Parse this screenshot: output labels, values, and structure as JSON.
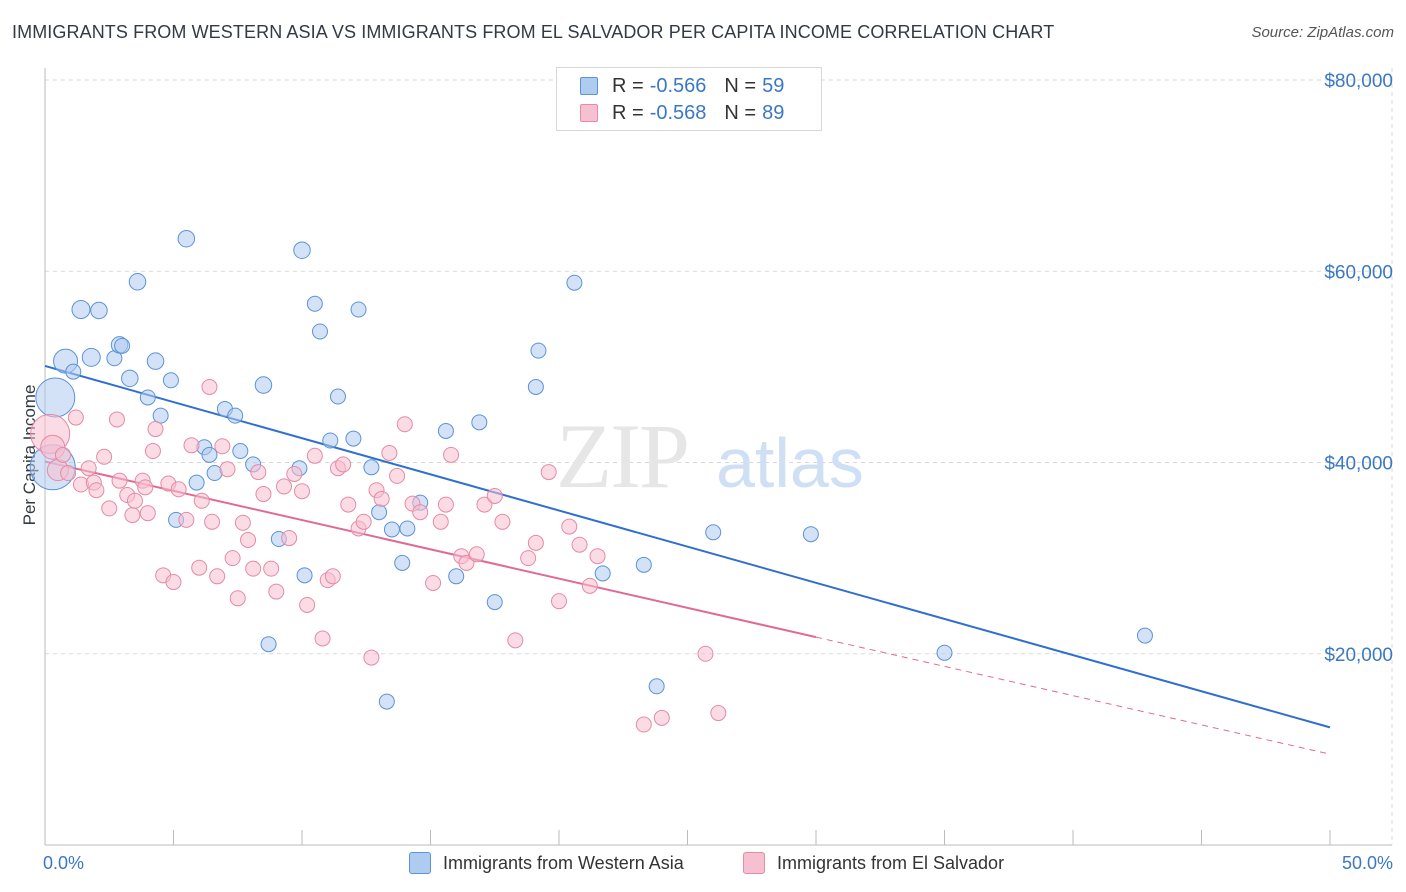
{
  "title": "IMMIGRANTS FROM WESTERN ASIA VS IMMIGRANTS FROM EL SALVADOR PER CAPITA INCOME CORRELATION CHART",
  "source": "Source: ZipAtlas.com",
  "watermark": {
    "zip": "ZIP",
    "atlas": "atlas"
  },
  "colors": {
    "blue_fill": "#aecbf0",
    "blue_stroke": "#5b93d6",
    "blue_line": "#2f6fd0",
    "pink_fill": "#f7c0d0",
    "pink_stroke": "#e58aa8",
    "pink_line": "#e06a95",
    "axis_text": "#3b78c4",
    "grid": "#d9d9d9"
  },
  "legend_top": [
    {
      "r_label": "R =",
      "r_value": "-0.566",
      "n_label": "N =",
      "n_value": "59",
      "color": "blue"
    },
    {
      "r_label": "R =",
      "r_value": "-0.568",
      "n_label": "N =",
      "n_value": "89",
      "color": "pink"
    }
  ],
  "legend_bottom": [
    "Immigrants from Western Asia",
    "Immigrants from El Salvador"
  ],
  "chart_data": {
    "type": "scatter",
    "title": "IMMIGRANTS FROM WESTERN ASIA VS IMMIGRANTS FROM EL SALVADOR PER CAPITA INCOME CORRELATION CHART",
    "xlabel": "",
    "ylabel": "Per Capita Income",
    "xlim": [
      0,
      50
    ],
    "ylim": [
      0,
      80000
    ],
    "x_tick_labels": [
      "0.0%",
      "50.0%"
    ],
    "y_ticks": [
      20000,
      40000,
      60000,
      80000
    ],
    "y_tick_labels": [
      "$20,000",
      "$40,000",
      "$60,000",
      "$80,000"
    ],
    "grid": true,
    "legend_position": "top-center",
    "series": [
      {
        "name": "Immigrants from Western Asia",
        "color": "blue",
        "r": -0.566,
        "n": 59,
        "trend": {
          "x": [
            0,
            50
          ],
          "y": [
            50100,
            12300
          ],
          "dashed_from": null
        },
        "points": [
          [
            0.3,
            39500,
            3
          ],
          [
            0.4,
            46800,
            2.6
          ],
          [
            0.8,
            50600,
            1.6
          ],
          [
            1.1,
            49500,
            1
          ],
          [
            1.4,
            56000,
            1.2
          ],
          [
            1.8,
            51000,
            1.2
          ],
          [
            2.1,
            55900,
            1.1
          ],
          [
            2.7,
            50900,
            1
          ],
          [
            2.9,
            52300,
            1.1
          ],
          [
            3.0,
            52200,
            1
          ],
          [
            3.3,
            48800,
            1.1
          ],
          [
            3.6,
            58900,
            1.1
          ],
          [
            4.0,
            46800,
            1
          ],
          [
            4.3,
            50600,
            1.1
          ],
          [
            4.5,
            44900,
            1
          ],
          [
            4.9,
            48600,
            1
          ],
          [
            5.1,
            34000,
            1
          ],
          [
            5.5,
            63400,
            1.1
          ],
          [
            5.9,
            37900,
            1
          ],
          [
            6.2,
            41600,
            1
          ],
          [
            6.4,
            40800,
            1
          ],
          [
            6.6,
            38900,
            1
          ],
          [
            7.0,
            45600,
            1
          ],
          [
            7.4,
            44900,
            1
          ],
          [
            7.6,
            41200,
            1
          ],
          [
            8.1,
            39800,
            1
          ],
          [
            8.5,
            48100,
            1.1
          ],
          [
            8.7,
            21000,
            1
          ],
          [
            9.1,
            32000,
            1
          ],
          [
            9.9,
            39400,
            1
          ],
          [
            10.0,
            62200,
            1.1
          ],
          [
            10.1,
            28200,
            1
          ],
          [
            10.5,
            56600,
            1
          ],
          [
            10.7,
            53700,
            1
          ],
          [
            11.4,
            46900,
            1
          ],
          [
            11.1,
            42300,
            1
          ],
          [
            12.0,
            42500,
            1
          ],
          [
            12.2,
            56000,
            1
          ],
          [
            12.7,
            39500,
            1
          ],
          [
            13.0,
            34800,
            1
          ],
          [
            13.5,
            33000,
            1
          ],
          [
            14.1,
            33100,
            1
          ],
          [
            14.6,
            35800,
            1
          ],
          [
            13.9,
            29500,
            1
          ],
          [
            13.3,
            15000,
            1
          ],
          [
            15.6,
            43300,
            1
          ],
          [
            16.0,
            28100,
            1
          ],
          [
            16.9,
            44200,
            1
          ],
          [
            17.5,
            25400,
            1
          ],
          [
            19.2,
            51700,
            1
          ],
          [
            19.1,
            47900,
            1
          ],
          [
            20.6,
            58800,
            1
          ],
          [
            21.7,
            28400,
            1
          ],
          [
            23.3,
            29300,
            1
          ],
          [
            23.8,
            16600,
            1
          ],
          [
            26.0,
            32700,
            1
          ],
          [
            29.8,
            32500,
            1
          ],
          [
            35.0,
            20100,
            1
          ],
          [
            42.8,
            21900,
            1
          ]
        ]
      },
      {
        "name": "Immigrants from El Salvador",
        "color": "pink",
        "r": -0.568,
        "n": 89,
        "trend": {
          "x": [
            0,
            50
          ],
          "y": [
            40100,
            9500
          ],
          "dashed_from": 30
        },
        "points": [
          [
            0.2,
            43000,
            2.6
          ],
          [
            0.3,
            41600,
            1.6
          ],
          [
            0.5,
            39200,
            1.4
          ],
          [
            0.7,
            40800,
            1
          ],
          [
            0.9,
            38900,
            1
          ],
          [
            1.2,
            44700,
            1
          ],
          [
            1.4,
            37700,
            1
          ],
          [
            1.7,
            39400,
            1
          ],
          [
            1.9,
            37900,
            1
          ],
          [
            2.0,
            37100,
            1
          ],
          [
            2.3,
            40600,
            1
          ],
          [
            2.5,
            35200,
            1
          ],
          [
            2.8,
            44500,
            1
          ],
          [
            2.9,
            38100,
            1
          ],
          [
            3.2,
            36600,
            1
          ],
          [
            3.4,
            34500,
            1
          ],
          [
            3.5,
            36000,
            1
          ],
          [
            3.8,
            38100,
            1
          ],
          [
            3.9,
            37400,
            1
          ],
          [
            4.0,
            34700,
            1
          ],
          [
            4.2,
            41200,
            1
          ],
          [
            4.3,
            43500,
            1
          ],
          [
            4.6,
            28200,
            1
          ],
          [
            4.8,
            37800,
            1
          ],
          [
            5.0,
            27500,
            1
          ],
          [
            5.2,
            37200,
            1
          ],
          [
            5.5,
            34000,
            1
          ],
          [
            5.7,
            41800,
            1
          ],
          [
            6.0,
            29000,
            1
          ],
          [
            6.1,
            36000,
            1
          ],
          [
            6.4,
            47900,
            1
          ],
          [
            6.5,
            33800,
            1
          ],
          [
            6.7,
            28100,
            1
          ],
          [
            6.9,
            41700,
            1
          ],
          [
            7.1,
            39300,
            1
          ],
          [
            7.3,
            30000,
            1
          ],
          [
            7.5,
            25800,
            1
          ],
          [
            7.7,
            33700,
            1
          ],
          [
            7.9,
            31900,
            1
          ],
          [
            8.1,
            28900,
            1
          ],
          [
            8.3,
            39000,
            1
          ],
          [
            8.5,
            36700,
            1
          ],
          [
            8.8,
            28900,
            1
          ],
          [
            9.0,
            26500,
            1
          ],
          [
            9.3,
            37500,
            1
          ],
          [
            9.5,
            32100,
            1
          ],
          [
            9.7,
            38800,
            1
          ],
          [
            10.0,
            37000,
            1
          ],
          [
            10.2,
            25100,
            1
          ],
          [
            10.5,
            40700,
            1
          ],
          [
            10.8,
            21600,
            1
          ],
          [
            11.0,
            27700,
            1
          ],
          [
            11.2,
            28100,
            1
          ],
          [
            11.4,
            39400,
            1
          ],
          [
            11.6,
            39800,
            1
          ],
          [
            11.8,
            35600,
            1
          ],
          [
            12.2,
            33100,
            1
          ],
          [
            12.4,
            33800,
            1
          ],
          [
            12.7,
            19600,
            1
          ],
          [
            12.9,
            37100,
            1
          ],
          [
            13.1,
            36200,
            1
          ],
          [
            13.4,
            41000,
            1
          ],
          [
            13.7,
            38600,
            1
          ],
          [
            14.0,
            44000,
            1
          ],
          [
            14.3,
            35700,
            1
          ],
          [
            14.6,
            34800,
            1
          ],
          [
            15.1,
            27400,
            1
          ],
          [
            15.4,
            33800,
            1
          ],
          [
            15.6,
            35600,
            1
          ],
          [
            15.8,
            40800,
            1
          ],
          [
            16.2,
            30200,
            1
          ],
          [
            16.4,
            29500,
            1
          ],
          [
            16.8,
            30400,
            1
          ],
          [
            17.1,
            35600,
            1
          ],
          [
            17.5,
            36500,
            1
          ],
          [
            17.8,
            33800,
            1
          ],
          [
            18.3,
            21400,
            1
          ],
          [
            18.8,
            30000,
            1
          ],
          [
            19.1,
            31600,
            1
          ],
          [
            19.6,
            39000,
            1
          ],
          [
            20.0,
            25500,
            1
          ],
          [
            20.4,
            33300,
            1
          ],
          [
            20.8,
            31400,
            1
          ],
          [
            21.2,
            27100,
            1
          ],
          [
            21.5,
            30200,
            1
          ],
          [
            23.3,
            12600,
            1
          ],
          [
            24.0,
            13300,
            1
          ],
          [
            25.7,
            20000,
            1
          ],
          [
            26.2,
            13800,
            1
          ]
        ]
      }
    ]
  }
}
